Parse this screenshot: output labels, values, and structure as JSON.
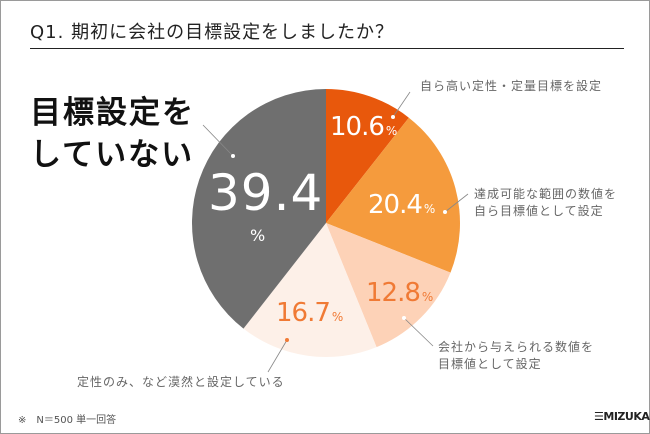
{
  "chart_data": {
    "type": "pie",
    "title": "Q1. 期初に会社の目標設定をしましたか？",
    "unit": "%",
    "slices": [
      {
        "label": "自ら高い定性・定量目標を設定",
        "value": 10.6,
        "color": "#e8580c",
        "text_color": "#ffffff"
      },
      {
        "label": "達成可能な範囲の数値を自ら目標値として設定",
        "value": 20.4,
        "color": "#f59b3d",
        "text_color": "#ffffff"
      },
      {
        "label": "会社から与えられる数値を目標値として設定",
        "value": 12.8,
        "color": "#fdd2b7",
        "text_color": "#f07a35"
      },
      {
        "label": "定性のみ、など漠然と設定している",
        "value": 16.7,
        "color": "#fdf0e8",
        "text_color": "#f07a35"
      },
      {
        "label": "目標設定をしていない",
        "value": 39.4,
        "color": "#6f6f6f",
        "text_color": "#ffffff"
      }
    ],
    "start": "top",
    "direction": "clockwise"
  },
  "labels": {
    "s0": "自ら高い定性・定量目標を設定",
    "s1a": "達成可能な範囲の数値を",
    "s1b": "自ら目標値として設定",
    "s2a": "会社から与えられる数値を",
    "s2b": "目標値として設定",
    "s3": "定性のみ、など漠然と設定している",
    "s4a": "目標設定を",
    "s4b": "していない"
  },
  "values": {
    "v0": "10.6",
    "v1": "20.4",
    "v2": "12.8",
    "v3": "16.7",
    "v4": "39.4",
    "pct": "%"
  },
  "footer": {
    "note": "※　N＝500 単一回答",
    "logo": "MIZUKARA"
  }
}
